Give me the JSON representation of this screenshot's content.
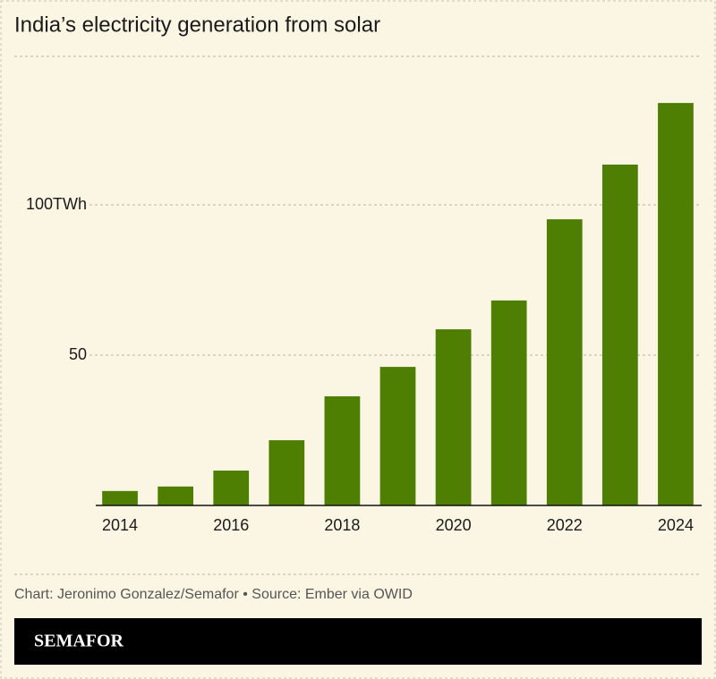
{
  "chart_data": {
    "type": "bar",
    "title": "India’s electricity generation from solar",
    "categories": [
      "2014",
      null,
      "2016",
      null,
      "2018",
      null,
      "2020",
      null,
      "2022",
      null,
      "2024"
    ],
    "values": [
      4.8,
      6.3,
      11.6,
      21.7,
      36.3,
      46.1,
      58.6,
      68.2,
      95.2,
      113.4,
      133.9
    ],
    "color": "#4e7f03",
    "ylim": [
      0,
      150
    ],
    "yticks": [
      50,
      {
        "value": 100,
        "label": "100TWh"
      }
    ],
    "grid": true,
    "source": "Chart: Jeronimo Gonzalez/Semafor • Source: Ember via OWID",
    "brand": "SEMAFOR"
  }
}
